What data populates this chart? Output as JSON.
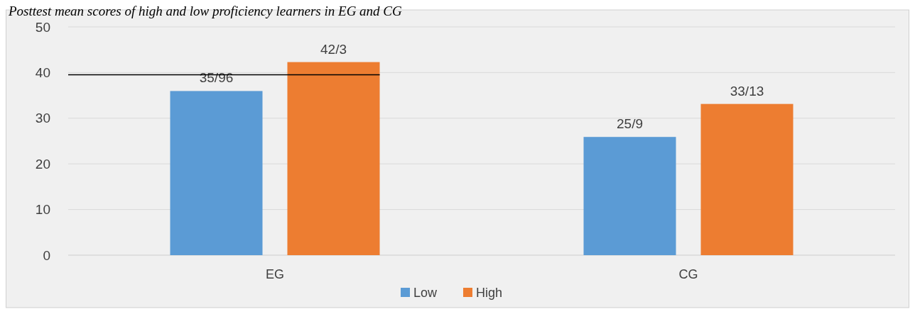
{
  "chart_data": {
    "type": "bar",
    "title": "Posttest mean scores of high and low proficiency learners in EG and CG",
    "categories": [
      "EG",
      "CG"
    ],
    "series": [
      {
        "name": "Low",
        "color": "#5b9bd5",
        "values": [
          35.96,
          25.9
        ],
        "value_labels": [
          "35/96",
          "25/9"
        ]
      },
      {
        "name": "High",
        "color": "#ed7d31",
        "values": [
          42.3,
          33.13
        ],
        "value_labels": [
          "42/3",
          "33/13"
        ]
      }
    ],
    "ylim": [
      0,
      50
    ],
    "yticks": [
      0,
      10,
      20,
      30,
      40,
      50
    ],
    "grid": "y",
    "legend": "bottom",
    "ref_lines": [
      {
        "axis": "y",
        "value": 39.5,
        "color": "#000000"
      }
    ]
  }
}
